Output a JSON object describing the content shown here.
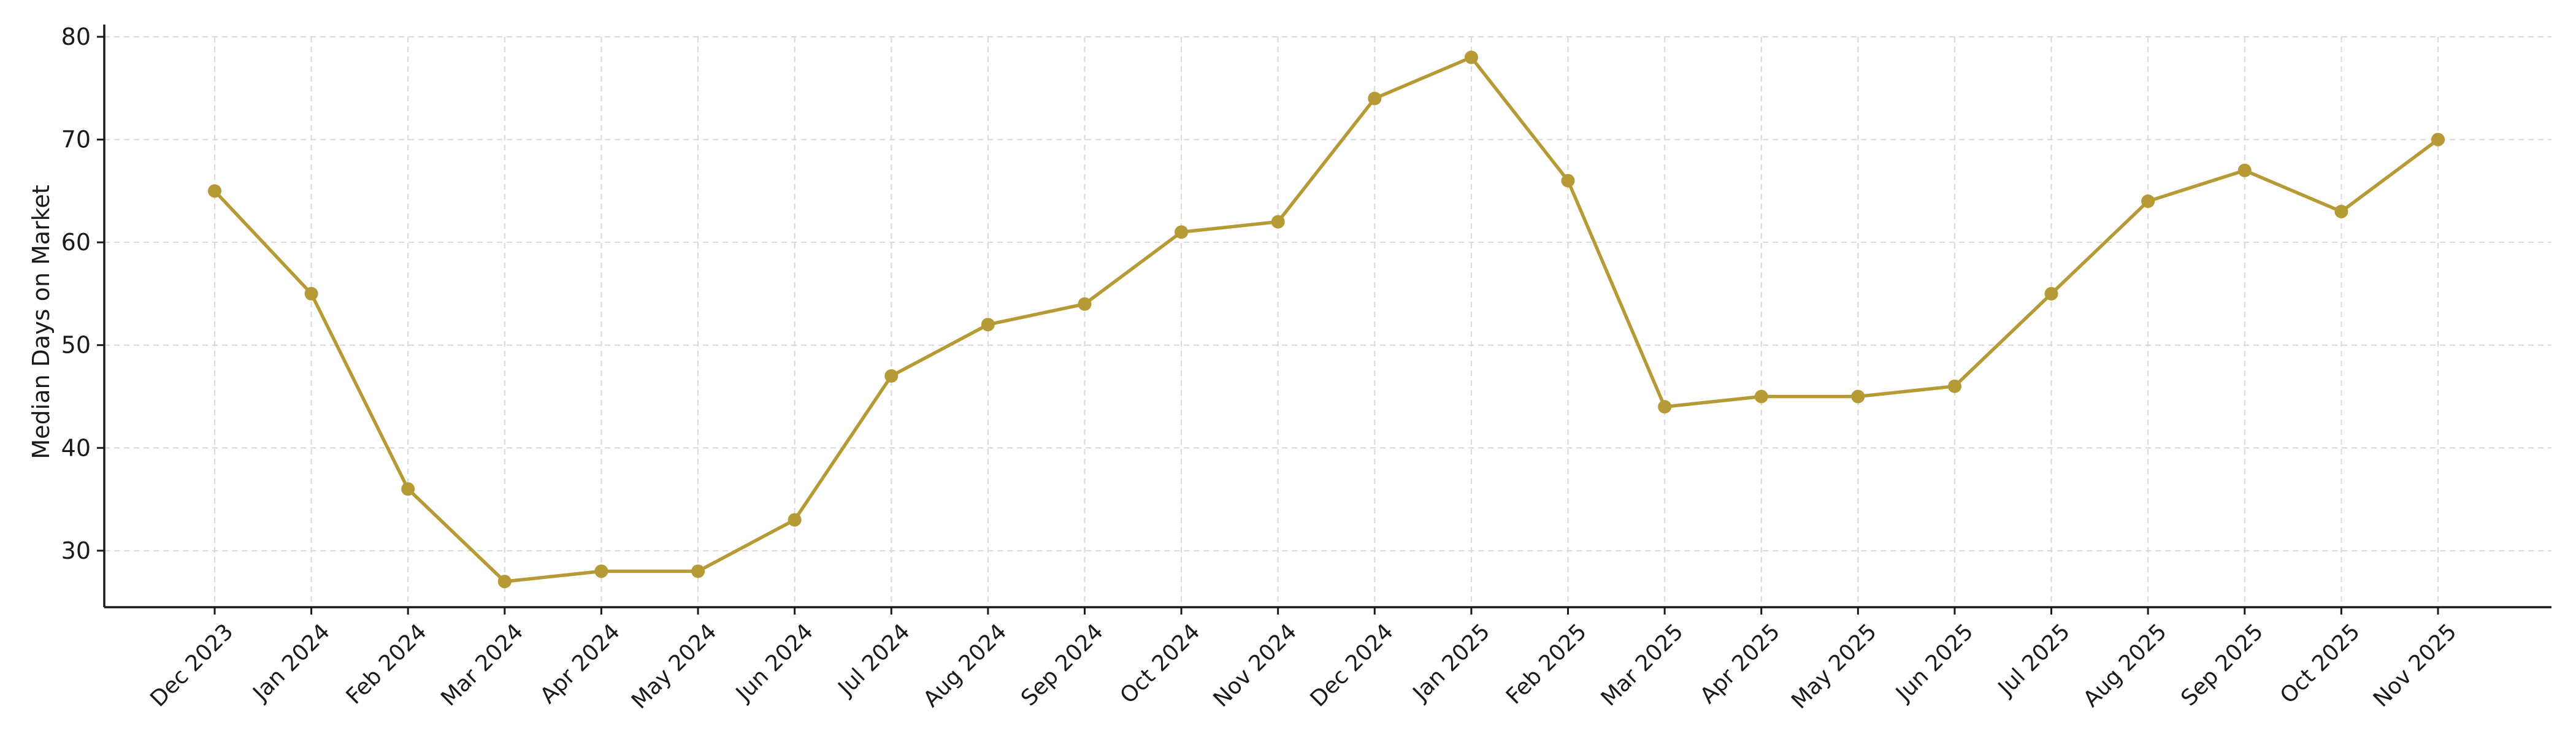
{
  "chart_data": {
    "type": "line",
    "title": "",
    "xlabel": "",
    "ylabel": "Median Days on Market",
    "categories": [
      "Dec 2023",
      "Jan 2024",
      "Feb 2024",
      "Mar 2024",
      "Apr 2024",
      "May 2024",
      "Jun 2024",
      "Jul 2024",
      "Aug 2024",
      "Sep 2024",
      "Oct 2024",
      "Nov 2024",
      "Dec 2024",
      "Jan 2025",
      "Feb 2025",
      "Mar 2025",
      "Apr 2025",
      "May 2025",
      "Jun 2025",
      "Jul 2025",
      "Aug 2025",
      "Sep 2025",
      "Oct 2025",
      "Nov 2025"
    ],
    "series": [
      {
        "values": [
          65,
          55,
          36,
          27,
          28,
          28,
          33,
          47,
          52,
          54,
          61,
          62,
          74,
          78,
          66,
          44,
          45,
          45,
          46,
          55,
          64,
          67,
          63,
          70
        ],
        "color": "#b59a35"
      }
    ],
    "ylim": [
      24.5,
      80
    ],
    "yticks": [
      30,
      40,
      50,
      60,
      70,
      80
    ],
    "grid": true,
    "grid_style": "dashed",
    "legend": "none",
    "axis_color": "#1a1a1a",
    "grid_color": "#d9d9d9"
  }
}
